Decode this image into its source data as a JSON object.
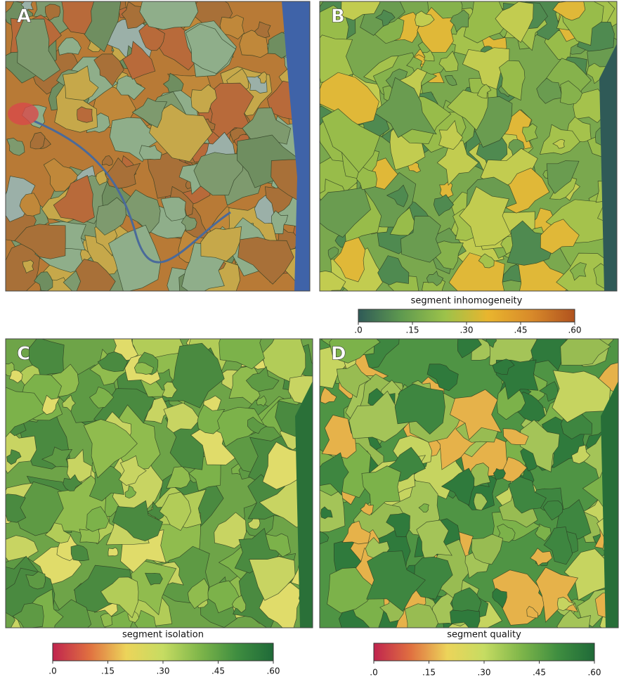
{
  "panels": [
    {
      "label": "A"
    },
    {
      "label": "B"
    },
    {
      "label": "C"
    },
    {
      "label": "D"
    }
  ],
  "colorbars": [
    {
      "title": "segment inhomogeneity",
      "range": [
        0,
        0.6
      ],
      "colors": [
        "#2f5a57",
        "#5f9a4f",
        "#9cc24a",
        "#e9b52e",
        "#d88a2a",
        "#b0521e"
      ],
      "ticks": [
        {
          "value": 0,
          "label": ".0"
        },
        {
          "value": 0.15,
          "label": ".15"
        },
        {
          "value": 0.3,
          "label": ".30"
        },
        {
          "value": 0.45,
          "label": ".45"
        },
        {
          "value": 0.6,
          "label": ".60"
        }
      ]
    },
    {
      "title": "segment isolation",
      "range": [
        0,
        0.6
      ],
      "colors": [
        "#c0244e",
        "#e07040",
        "#ecd45a",
        "#c6dc62",
        "#7fb64a",
        "#3f8e40",
        "#1f6a38"
      ],
      "ticks": [
        {
          "value": 0,
          "label": ".0"
        },
        {
          "value": 0.15,
          "label": ".15"
        },
        {
          "value": 0.3,
          "label": ".30"
        },
        {
          "value": 0.45,
          "label": ".45"
        },
        {
          "value": 0.6,
          "label": ".60"
        }
      ]
    },
    {
      "title": "segment quality",
      "range": [
        0,
        0.6
      ],
      "colors": [
        "#c0244e",
        "#e07040",
        "#ecd45a",
        "#c6dc62",
        "#7fb64a",
        "#3f8e40",
        "#1f6a38"
      ],
      "ticks": [
        {
          "value": 0,
          "label": ".0"
        },
        {
          "value": 0.15,
          "label": ".15"
        },
        {
          "value": 0.3,
          "label": ".30"
        },
        {
          "value": 0.45,
          "label": ".45"
        },
        {
          "value": 0.6,
          "label": ".60"
        }
      ]
    }
  ]
}
